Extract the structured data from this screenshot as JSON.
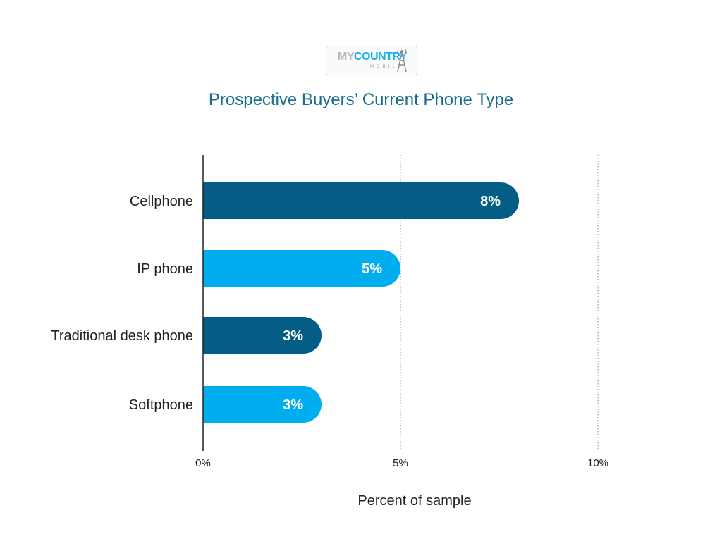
{
  "logo": {
    "my": "MY",
    "country": "COUNTRY",
    "mobile": "MOBILE"
  },
  "colors": {
    "title": "#1b6d8e",
    "dark_bar": "#045d85",
    "light_bar": "#00aeef",
    "label": "#ffffff",
    "axis": "#222222",
    "grid": "#8c8c8c"
  },
  "chart_data": {
    "type": "bar",
    "orientation": "horizontal",
    "title": "Prospective Buyers’ Current Phone Type",
    "xlabel": "Percent of sample",
    "ylabel": "",
    "categories": [
      "Cellphone",
      "IP phone",
      "Traditional desk phone",
      "Softphone"
    ],
    "values": [
      8,
      5,
      3,
      3
    ],
    "data_labels": [
      "8%",
      "5%",
      "3%",
      "3%"
    ],
    "bar_colors": [
      "#045d85",
      "#00aeef",
      "#045d85",
      "#00aeef"
    ],
    "xlim": [
      0,
      10
    ],
    "xticks": [
      0,
      5,
      10
    ],
    "xtick_labels": [
      "0%",
      "5%",
      "10%"
    ],
    "grid": "vertical dotted",
    "legend": "none"
  }
}
